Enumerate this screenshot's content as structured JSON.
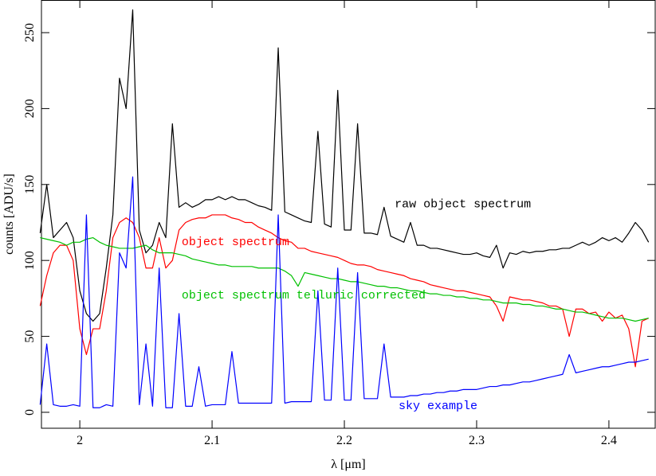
{
  "chart_data": {
    "type": "line",
    "xlabel": "λ [μm]",
    "ylabel": "counts [ADU/s]",
    "xlim": [
      1.971,
      2.435
    ],
    "ylim": [
      -10.5,
      271.5
    ],
    "xticks": [
      2,
      2.1,
      2.2,
      2.3,
      2.4
    ],
    "yticks": [
      0,
      50,
      100,
      150,
      200,
      250
    ],
    "x": [
      1.97,
      1.975,
      1.98,
      1.985,
      1.99,
      1.995,
      2,
      2.005,
      2.01,
      2.015,
      2.02,
      2.025,
      2.03,
      2.035,
      2.04,
      2.045,
      2.05,
      2.055,
      2.06,
      2.065,
      2.07,
      2.075,
      2.08,
      2.085,
      2.09,
      2.095,
      2.1,
      2.105,
      2.11,
      2.115,
      2.12,
      2.125,
      2.13,
      2.135,
      2.14,
      2.145,
      2.15,
      2.155,
      2.16,
      2.165,
      2.17,
      2.175,
      2.18,
      2.185,
      2.19,
      2.195,
      2.2,
      2.205,
      2.21,
      2.215,
      2.22,
      2.225,
      2.23,
      2.235,
      2.24,
      2.245,
      2.25,
      2.255,
      2.26,
      2.265,
      2.27,
      2.275,
      2.28,
      2.285,
      2.29,
      2.295,
      2.3,
      2.305,
      2.31,
      2.315,
      2.32,
      2.325,
      2.33,
      2.335,
      2.34,
      2.345,
      2.35,
      2.355,
      2.36,
      2.365,
      2.37,
      2.375,
      2.38,
      2.385,
      2.39,
      2.395,
      2.4,
      2.405,
      2.41,
      2.415,
      2.42,
      2.425,
      2.43
    ],
    "series": [
      {
        "name": "raw object spectrum",
        "color": "#000000",
        "values": [
          118,
          150,
          115,
          120,
          125,
          115,
          80,
          65,
          60,
          65,
          95,
          130,
          220,
          200,
          265,
          120,
          105,
          110,
          125,
          115,
          190,
          135,
          138,
          135,
          137,
          140,
          140,
          142,
          140,
          142,
          140,
          140,
          138,
          136,
          135,
          133,
          240,
          132,
          130,
          128,
          126,
          125,
          185,
          124,
          122,
          212,
          120,
          120,
          190,
          118,
          118,
          117,
          135,
          116,
          114,
          112,
          125,
          110,
          110,
          108,
          108,
          107,
          106,
          105,
          104,
          104,
          105,
          103,
          102,
          110,
          95,
          105,
          104,
          106,
          105,
          106,
          106,
          107,
          107,
          108,
          108,
          110,
          112,
          110,
          112,
          115,
          113,
          115,
          112,
          118,
          125,
          120,
          112
        ]
      },
      {
        "name": "object spectrum",
        "color": "#ff0000",
        "values": [
          70,
          90,
          105,
          110,
          110,
          100,
          55,
          38,
          55,
          55,
          80,
          115,
          125,
          128,
          125,
          115,
          95,
          95,
          115,
          95,
          100,
          120,
          125,
          127,
          128,
          128,
          130,
          130,
          130,
          128,
          127,
          125,
          125,
          122,
          120,
          118,
          115,
          113,
          112,
          108,
          108,
          106,
          105,
          104,
          103,
          102,
          100,
          98,
          97,
          97,
          96,
          94,
          93,
          92,
          91,
          90,
          88,
          87,
          86,
          84,
          83,
          82,
          81,
          80,
          80,
          79,
          78,
          77,
          76,
          70,
          60,
          76,
          75,
          74,
          74,
          73,
          72,
          70,
          70,
          68,
          50,
          68,
          68,
          65,
          66,
          60,
          66,
          62,
          64,
          55,
          30,
          60,
          62
        ]
      },
      {
        "name": "object spectrum telluric corrected",
        "color": "#00c000",
        "values": [
          115,
          114,
          113,
          112,
          110,
          112,
          112,
          114,
          115,
          112,
          110,
          109,
          108,
          108,
          108,
          109,
          110,
          107,
          105,
          105,
          105,
          104,
          103,
          101,
          100,
          99,
          98,
          97,
          97,
          96,
          96,
          96,
          96,
          95,
          95,
          95,
          95,
          93,
          90,
          83,
          92,
          91,
          90,
          89,
          88,
          88,
          87,
          86,
          86,
          85,
          84,
          83,
          83,
          82,
          82,
          81,
          80,
          80,
          79,
          78,
          78,
          77,
          77,
          76,
          76,
          75,
          75,
          74,
          74,
          73,
          72,
          72,
          72,
          71,
          71,
          70,
          70,
          69,
          68,
          68,
          67,
          66,
          66,
          65,
          64,
          63,
          62,
          62,
          62,
          61,
          60,
          61,
          62
        ]
      },
      {
        "name": "sky example",
        "color": "#0000ff",
        "values": [
          5,
          45,
          5,
          4,
          4,
          5,
          4,
          130,
          3,
          3,
          5,
          4,
          105,
          95,
          155,
          5,
          45,
          4,
          95,
          3,
          3,
          65,
          4,
          4,
          30,
          4,
          5,
          5,
          5,
          40,
          6,
          6,
          6,
          6,
          6,
          6,
          130,
          6,
          7,
          7,
          7,
          7,
          80,
          8,
          8,
          95,
          8,
          8,
          92,
          9,
          9,
          9,
          45,
          10,
          10,
          10,
          11,
          11,
          12,
          12,
          13,
          13,
          14,
          14,
          15,
          15,
          15,
          16,
          17,
          17,
          18,
          18,
          19,
          20,
          20,
          21,
          22,
          23,
          24,
          25,
          38,
          26,
          27,
          28,
          29,
          30,
          30,
          31,
          32,
          33,
          33,
          34,
          35
        ]
      }
    ],
    "annotations": [
      {
        "text": "raw object spectrum",
        "x": 2.238,
        "y": 135,
        "color": "#000000"
      },
      {
        "text": "object spectrum",
        "x": 2.077,
        "y": 110,
        "color": "#ff0000"
      },
      {
        "text": "object spectrum telluric corrected",
        "x": 2.077,
        "y": 75,
        "color": "#00c000"
      },
      {
        "text": "sky example",
        "x": 2.241,
        "y": 2,
        "color": "#0000ff"
      }
    ]
  }
}
